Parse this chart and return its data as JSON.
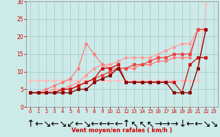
{
  "background_color": "#cceae8",
  "grid_color": "#aacccc",
  "xlabel": "Vent moyen/en rafales ( km/h )",
  "xlim": [
    -0.5,
    23.5
  ],
  "ylim": [
    0,
    30
  ],
  "xticks": [
    0,
    1,
    2,
    3,
    4,
    5,
    6,
    7,
    8,
    9,
    10,
    11,
    12,
    13,
    14,
    15,
    16,
    17,
    18,
    19,
    20,
    21,
    22,
    23
  ],
  "yticks": [
    0,
    5,
    10,
    15,
    20,
    25,
    30
  ],
  "series": [
    {
      "x": [
        0,
        1,
        2,
        3,
        4,
        5,
        6,
        7,
        8,
        9,
        10,
        11,
        12,
        13,
        14,
        15,
        16,
        17,
        18,
        19,
        20,
        21,
        22
      ],
      "y": [
        7.5,
        7.5,
        7.5,
        7.5,
        7.5,
        7.5,
        7.5,
        7.5,
        7.5,
        7.5,
        7.5,
        7.5,
        7.5,
        7.5,
        7.5,
        7.5,
        7.5,
        7.5,
        7.5,
        7.5,
        7.5,
        7.5,
        29
      ],
      "color": "#ffbbbb",
      "marker": "D",
      "markersize": 2.5,
      "linewidth": 0.9
    },
    {
      "x": [
        0,
        1,
        2,
        3,
        4,
        5,
        6,
        7,
        8,
        9,
        10,
        11,
        12,
        13,
        14,
        15,
        16,
        17,
        18,
        19,
        20,
        21,
        22
      ],
      "y": [
        4,
        4,
        4,
        5,
        5,
        6,
        7,
        9,
        11,
        12,
        12,
        13,
        14,
        14,
        14,
        14,
        15,
        16,
        17,
        18,
        18,
        22,
        22
      ],
      "color": "#ff9999",
      "marker": "D",
      "markersize": 2.5,
      "linewidth": 0.9
    },
    {
      "x": [
        0,
        1,
        2,
        3,
        4,
        5,
        6,
        7,
        8,
        9,
        10,
        11,
        12,
        13,
        14,
        15,
        16,
        17,
        18,
        19,
        20,
        21,
        22
      ],
      "y": [
        4,
        4,
        5,
        6,
        7,
        8,
        11,
        18,
        15,
        12,
        11,
        11,
        11,
        11,
        12,
        12,
        13,
        13,
        14,
        14,
        14,
        22,
        22
      ],
      "color": "#ff7777",
      "marker": "D",
      "markersize": 2.5,
      "linewidth": 0.9
    },
    {
      "x": [
        0,
        1,
        2,
        3,
        4,
        5,
        6,
        7,
        8,
        9,
        10,
        11,
        12,
        13,
        14,
        15,
        16,
        17,
        18,
        19,
        20,
        21,
        22
      ],
      "y": [
        4,
        4,
        4,
        4,
        5,
        5,
        6,
        7,
        8,
        9,
        10,
        11,
        11,
        12,
        12,
        13,
        14,
        14,
        15,
        15,
        15,
        22,
        22
      ],
      "color": "#ee4444",
      "marker": "s",
      "markersize": 2.5,
      "linewidth": 1.0
    },
    {
      "x": [
        0,
        1,
        2,
        3,
        4,
        5,
        6,
        7,
        8,
        9,
        10,
        11,
        12,
        13,
        14,
        15,
        16,
        17,
        18,
        19,
        20,
        21,
        22
      ],
      "y": [
        4,
        4,
        4,
        4,
        5,
        5,
        6,
        7,
        8,
        11,
        11,
        12,
        7,
        7,
        7,
        7,
        7,
        7,
        7,
        4,
        12,
        14,
        14
      ],
      "color": "#cc1111",
      "marker": "s",
      "markersize": 2.5,
      "linewidth": 1.0
    },
    {
      "x": [
        0,
        1,
        2,
        3,
        4,
        5,
        6,
        7,
        8,
        9,
        10,
        11,
        12,
        13,
        14,
        15,
        16,
        17,
        18,
        19,
        20,
        21,
        22
      ],
      "y": [
        4,
        4,
        4,
        4,
        4,
        4,
        5,
        5,
        7,
        8,
        9,
        11,
        7,
        7,
        7,
        7,
        7,
        7,
        4,
        4,
        4,
        11,
        22
      ],
      "color": "#880000",
      "marker": "s",
      "markersize": 2.5,
      "linewidth": 1.0
    }
  ],
  "arrows": [
    "↑",
    "←",
    "↘",
    "←",
    "↘",
    "↙",
    "←",
    "↘",
    "←",
    "←",
    "←",
    "←",
    "↑",
    "↖",
    "↖",
    "↖",
    "→",
    "→",
    "→",
    "↓",
    "←",
    "←",
    "↘",
    "↘"
  ]
}
